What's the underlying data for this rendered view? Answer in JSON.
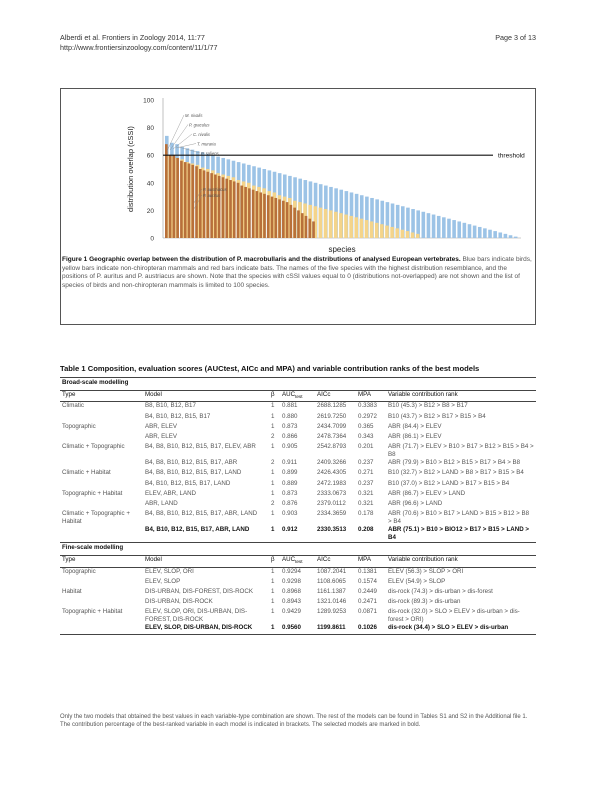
{
  "header": {
    "citation": "Alberdi et al. Frontiers in Zoology 2014, 11:77",
    "url": "http://www.frontiersinzoology.com/content/11/1/77",
    "page": "Page 3 of 13"
  },
  "figure": {
    "label": "Figure 1",
    "title": "Geographic overlap between the distribution of P. macrobullaris and the distributions of analysed European vertebrates.",
    "caption": "Blue bars indicate birds, yellow bars indicate non-chiropteran mammals and red bars indicate bats. The names of the five species with the highest distribution resemblance, and the positions of P. auritus and P. austriacus are shown. Note that the species with cSSI values equal to 0 (distributions not-overlapped) are not shown and the list of species of birds and non-chiropteran mammals is limited to 100 species.",
    "colors": {
      "birds": "#9cc3e6",
      "mammals": "#f4d48a",
      "bats": "#b8703a",
      "threshold": "#111111"
    }
  },
  "chart_data": {
    "type": "bar",
    "xlabel": "species",
    "ylabel": "distribution overlap (cSSI)",
    "ylim": [
      0,
      100
    ],
    "yticks": [
      "0",
      "20",
      "40",
      "60",
      "80",
      "100"
    ],
    "threshold": {
      "value": 60,
      "label": "threshold"
    },
    "top_species_labels": [
      "M. nivalis",
      "P. graculus",
      "C. nivalis",
      "T. muraria",
      "P. saliens"
    ],
    "annotated_species": [
      "P. austriacus",
      "P. auritus"
    ],
    "series": [
      {
        "name": "bats",
        "values": [
          68,
          60,
          60,
          58,
          56,
          55,
          54,
          53,
          52,
          50,
          49,
          48,
          47,
          46,
          45,
          44,
          43,
          42,
          41,
          40,
          38,
          37,
          36,
          35,
          34,
          33,
          32,
          31,
          30,
          29,
          28,
          27,
          26,
          24,
          22,
          20,
          18,
          16,
          14,
          12
        ]
      },
      {
        "name": "mammals",
        "values": [
          60,
          59,
          58,
          57,
          55,
          54,
          53,
          51,
          50,
          49,
          47,
          46,
          45,
          44,
          42,
          41,
          40,
          38,
          37,
          36,
          34,
          33,
          31,
          30,
          29,
          27,
          26,
          25,
          24,
          23,
          22,
          21,
          20,
          19,
          18,
          17,
          16,
          15,
          14,
          13,
          12,
          11,
          10,
          9,
          8,
          7,
          6,
          5,
          4,
          3
        ]
      },
      {
        "name": "birds",
        "values": [
          74,
          69,
          68,
          66,
          65,
          64,
          63,
          62,
          61,
          60,
          59,
          58,
          57,
          56,
          55,
          54,
          53,
          52,
          51,
          50,
          49,
          48,
          47,
          46,
          45,
          44,
          43,
          42,
          41,
          40,
          39,
          38,
          37,
          36,
          35,
          34,
          33,
          32,
          31,
          30,
          29,
          28,
          27,
          26,
          25,
          24,
          23,
          22,
          21,
          20,
          19,
          18,
          17,
          16,
          15,
          14,
          13,
          12,
          11,
          10,
          9,
          8,
          7,
          6,
          5,
          4,
          3,
          2,
          1
        ]
      }
    ]
  },
  "table": {
    "title": "Table 1 Composition, evaluation scores (AUCtest, AICc and MPA) and variable contribution ranks of the best models",
    "sections": [
      {
        "name": "Broad-scale modelling",
        "header": {
          "type": "Type",
          "model": "Model",
          "beta": "β",
          "auc": "AUC",
          "auc_sub": "test",
          "aicc": "AICc",
          "mpa": "MPA",
          "rank": "Variable contribution rank"
        },
        "rows": [
          {
            "type": "Climatic",
            "model": "B8, B10, B12, B17",
            "beta": "1",
            "auc": "0.881",
            "aicc": "2688.1285",
            "mpa": "0.3383",
            "rank": "B10 (45.3) > B12 > B8 > B17",
            "bold": false
          },
          {
            "type": "",
            "model": "B4, B10, B12, B15, B17",
            "beta": "1",
            "auc": "0.880",
            "aicc": "2619.7250",
            "mpa": "0.2972",
            "rank": "B10 (43.7) > B12 > B17 > B15 > B4",
            "bold": false
          },
          {
            "type": "Topographic",
            "model": "ABR, ELEV",
            "beta": "1",
            "auc": "0.873",
            "aicc": "2434.7099",
            "mpa": "0.365",
            "rank": "ABR (84.4) > ELEV",
            "bold": false
          },
          {
            "type": "",
            "model": "ABR, ELEV",
            "beta": "2",
            "auc": "0.866",
            "aicc": "2478.7364",
            "mpa": "0.343",
            "rank": "ABR (86.1) > ELEV",
            "bold": false
          },
          {
            "type": "Climatic + Topographic",
            "model": "B4, B8, B10, B12, B15, B17, ELEV, ABR",
            "beta": "1",
            "auc": "0.905",
            "aicc": "2542.8793",
            "mpa": "0.201",
            "rank": "ABR (71.7) > ELEV > B10 > B17 > B12 > B15 > B4 > B8",
            "bold": false
          },
          {
            "type": "",
            "model": "B4, B8, B10, B12, B15, B17, ABR",
            "beta": "2",
            "auc": "0.911",
            "aicc": "2409.3266",
            "mpa": "0.237",
            "rank": "ABR (79.9) > B10 > B12 > B15 > B17 > B4 > B8",
            "bold": false
          },
          {
            "type": "Climatic + Habitat",
            "model": "B4, B8, B10, B12, B15, B17, LAND",
            "beta": "1",
            "auc": "0.899",
            "aicc": "2426.4305",
            "mpa": "0.271",
            "rank": "B10 (32.7) > B12 > LAND > B8 > B17 > B15 > B4",
            "bold": false
          },
          {
            "type": "",
            "model": "B4, B10, B12, B15, B17, LAND",
            "beta": "1",
            "auc": "0.889",
            "aicc": "2472.1983",
            "mpa": "0.237",
            "rank": "B10 (37.0) > B12 > LAND > B17 > B15 > B4",
            "bold": false
          },
          {
            "type": "Topographic + Habitat",
            "model": "ELEV, ABR, LAND",
            "beta": "1",
            "auc": "0.873",
            "aicc": "2333.0673",
            "mpa": "0.321",
            "rank": "ABR (86.7) > ELEV > LAND",
            "bold": false
          },
          {
            "type": "",
            "model": "ABR, LAND",
            "beta": "2",
            "auc": "0.876",
            "aicc": "2379.0112",
            "mpa": "0.321",
            "rank": "ABR (96.6) > LAND",
            "bold": false
          },
          {
            "type": "Climatic + Topographic + Habitat",
            "model": "B4, B8, B10, B12, B15, B17, ABR, LAND",
            "beta": "1",
            "auc": "0.903",
            "aicc": "2334.3659",
            "mpa": "0.178",
            "rank": "ABR (70.6) > B10 > B17 > LAND > B15 > B12 > B8 > B4",
            "bold": false
          },
          {
            "type": "",
            "model": "B4, B10, B12, B15, B17, ABR, LAND",
            "beta": "1",
            "auc": "0.912",
            "aicc": "2330.3513",
            "mpa": "0.208",
            "rank": "ABR (75.1) > B10 > BIO12 > B17 > B15 > LAND > B4",
            "bold": true
          }
        ]
      },
      {
        "name": "Fine-scale modelling",
        "header": {
          "type": "Type",
          "model": "Model",
          "beta": "β",
          "auc": "AUC",
          "auc_sub": "test",
          "aicc": "AICc",
          "mpa": "MPA",
          "rank": "Variable contribution rank"
        },
        "rows": [
          {
            "type": "Topographic",
            "model": "ELEV, SLOP, ORI",
            "beta": "1",
            "auc": "0.9294",
            "aicc": "1087.2041",
            "mpa": "0.1381",
            "rank": "ELEV (56.3) > SLOP > ORI",
            "bold": false
          },
          {
            "type": "",
            "model": "ELEV, SLOP",
            "beta": "1",
            "auc": "0.9298",
            "aicc": "1108.6065",
            "mpa": "0.1574",
            "rank": "ELEV (54.9) > SLOP",
            "bold": false
          },
          {
            "type": "Habitat",
            "model": "DIS-URBAN, DIS-FOREST, DIS-ROCK",
            "beta": "1",
            "auc": "0.8968",
            "aicc": "1161.1387",
            "mpa": "0.2449",
            "rank": "dis-rock (74.3) > dis-urban > dis-forest",
            "bold": false
          },
          {
            "type": "",
            "model": "DIS-URBAN, DIS-ROCK",
            "beta": "1",
            "auc": "0.8943",
            "aicc": "1321.0146",
            "mpa": "0.2471",
            "rank": "dis-rock (89.3) > dis-urban",
            "bold": false
          },
          {
            "type": "Topographic + Habitat",
            "model": "ELEV, SLOP, ORI, DIS-URBAN, DIS-FOREST, DIS-ROCK",
            "beta": "1",
            "auc": "0.9429",
            "aicc": "1289.9253",
            "mpa": "0.0871",
            "rank": "dis-rock (32.0) > SLO > ELEV > dis-urban > dis-forest > ORI)",
            "bold": false
          },
          {
            "type": "",
            "model": "ELEV, SLOP, DIS-URBAN, DIS-ROCK",
            "beta": "1",
            "auc": "0.9560",
            "aicc": "1199.8611",
            "mpa": "0.1026",
            "rank": "dis-rock (34.4) > SLO > ELEV > dis-urban",
            "bold": true
          }
        ]
      }
    ],
    "footnote": "Only the two models that obtained the best values in each variable-type combination are shown. The rest of the models can be found in Tables S1 and S2 in the Additional file 1. The contribution percentage of the best-ranked variable in each model is indicated in brackets. The selected models are marked in bold."
  }
}
